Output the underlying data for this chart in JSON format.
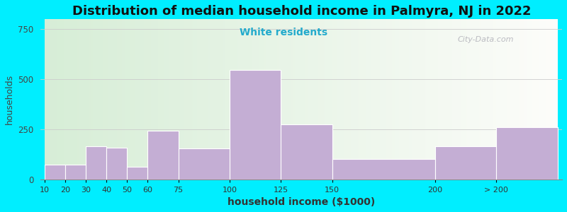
{
  "title": "Distribution of median household income in Palmyra, NJ in 2022",
  "subtitle": "White residents",
  "xlabel": "household income ($1000)",
  "ylabel": "households",
  "bar_color": "#c4aed4",
  "background_outer": "#00eeff",
  "background_left_color": "#d8ecd8",
  "background_right_color": "#f5f5ff",
  "categories": [
    "10",
    "20",
    "30",
    "40",
    "50",
    "60",
    "75",
    "100",
    "125",
    "150",
    "200",
    "> 200"
  ],
  "values": [
    75,
    75,
    165,
    160,
    65,
    245,
    155,
    545,
    275,
    105,
    165,
    260
  ],
  "edges": [
    10,
    20,
    30,
    40,
    50,
    60,
    75,
    100,
    125,
    150,
    200,
    230,
    260
  ],
  "ylim": [
    0,
    800
  ],
  "yticks": [
    0,
    250,
    500,
    750
  ],
  "watermark": "City-Data.com",
  "title_fontsize": 13,
  "subtitle_fontsize": 10,
  "subtitle_color": "#22aacc",
  "ylabel_fontsize": 9,
  "xlabel_fontsize": 10
}
